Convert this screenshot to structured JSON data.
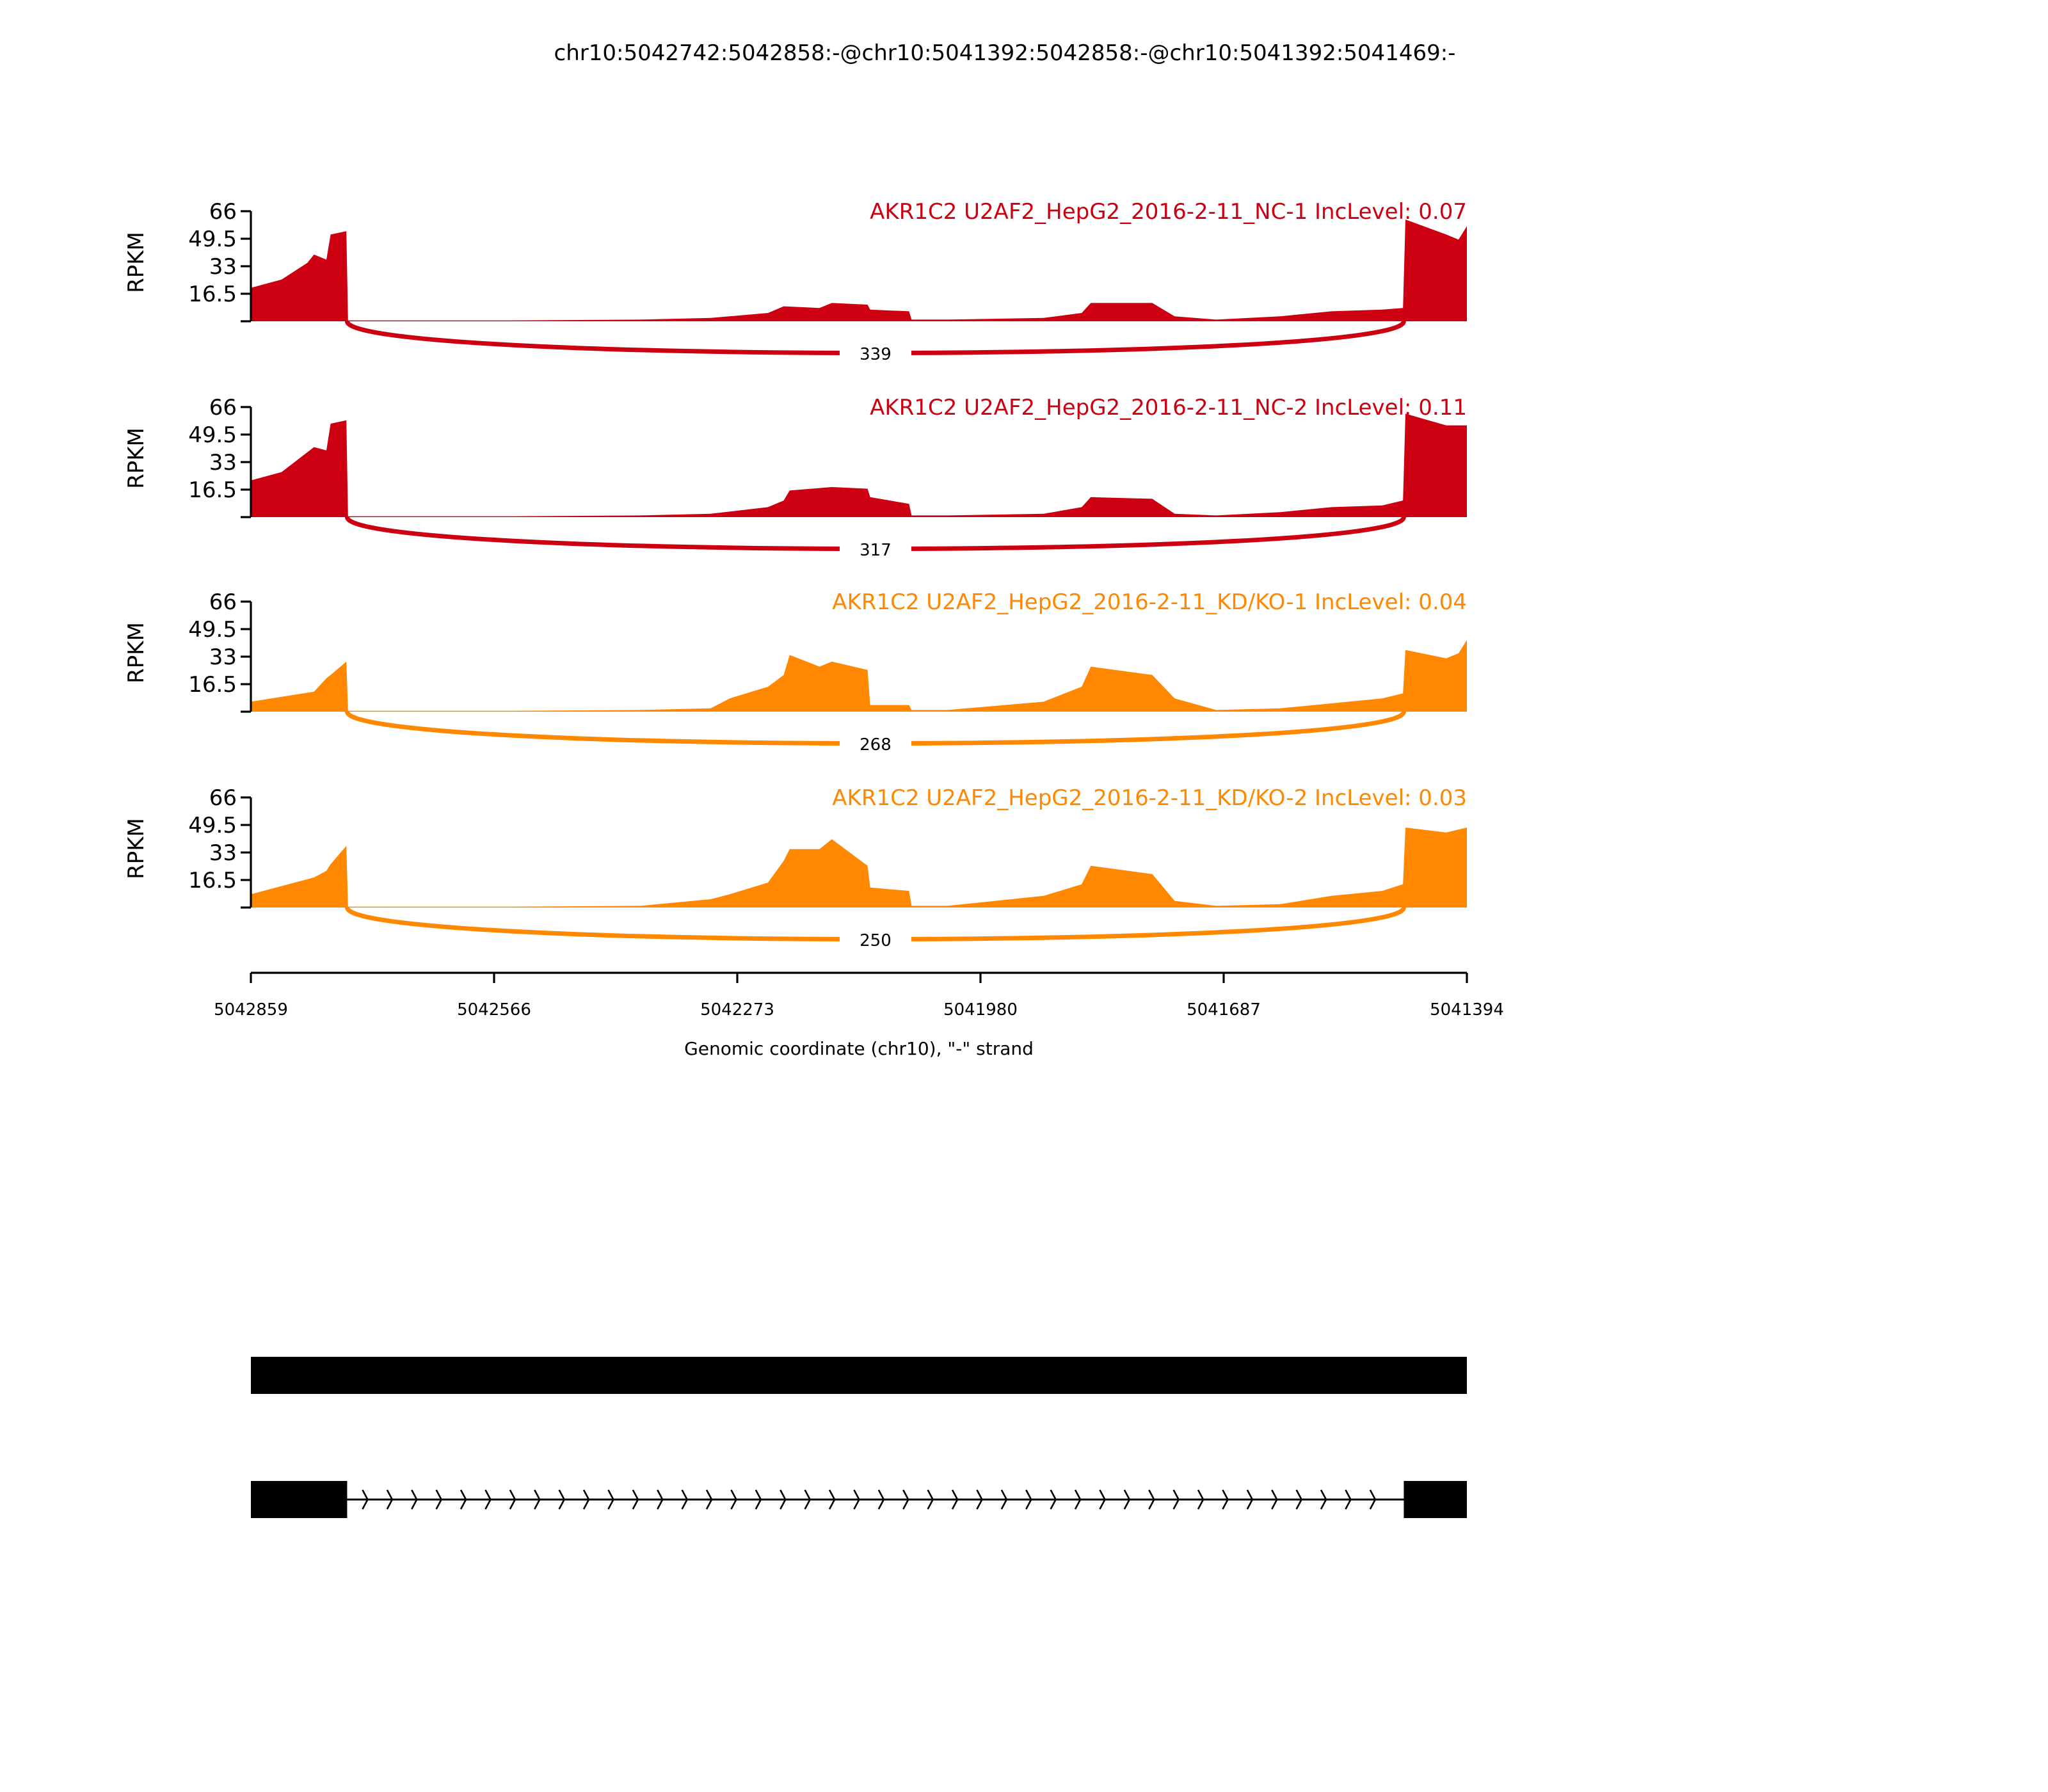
{
  "chart_data": {
    "type": "area",
    "title": "chr10:5042742:5042858:-@chr10:5041392:5042858:-@chr10:5041392:5041469:-",
    "xlabel": "Genomic coordinate (chr10), \"-\" strand",
    "ylabel": "RPKM",
    "xlim": [
      5042859,
      5041394
    ],
    "x_ticks": [
      "5042859",
      "5042566",
      "5042273",
      "5041980",
      "5041687",
      "5041394"
    ],
    "x_tick_values": [
      5042859,
      5042566,
      5042273,
      5041980,
      5041687,
      5041394
    ],
    "ylim": [
      0,
      66
    ],
    "y_ticks": [
      "16.5",
      "33",
      "49.5",
      "66"
    ],
    "y_tick_values": [
      16.5,
      33,
      49.5,
      66
    ],
    "series": [
      {
        "name": "AKR1C2 U2AF2_HepG2_2016-2-11_NC-1 IncLevel: 0.07",
        "color": "#cc0011",
        "junction": {
          "start": 5042743,
          "end": 5041470,
          "count": "339"
        },
        "coverage": [
          [
            5042859,
            20
          ],
          [
            5042822,
            25
          ],
          [
            5042791,
            35
          ],
          [
            5042783,
            40
          ],
          [
            5042768,
            37
          ],
          [
            5042763,
            52
          ],
          [
            5042744,
            54
          ],
          [
            5042742,
            0.5
          ],
          [
            5042544,
            0.5
          ],
          [
            5042390,
            1
          ],
          [
            5042305,
            2
          ],
          [
            5042236,
            5
          ],
          [
            5042217,
            9
          ],
          [
            5042174,
            8
          ],
          [
            5042159,
            11
          ],
          [
            5042116,
            10
          ],
          [
            5042113,
            7
          ],
          [
            5042066,
            6
          ],
          [
            5042063,
            1
          ],
          [
            5042020,
            1
          ],
          [
            5041904,
            2
          ],
          [
            5041858,
            5
          ],
          [
            5041847,
            11
          ],
          [
            5041773,
            11
          ],
          [
            5041746,
            3
          ],
          [
            5041696,
            1
          ],
          [
            5041619,
            3
          ],
          [
            5041557,
            6
          ],
          [
            5041496,
            7
          ],
          [
            5041471,
            8
          ],
          [
            5041468,
            61
          ],
          [
            5041419,
            52
          ],
          [
            5041404,
            49
          ],
          [
            5041394,
            57
          ]
        ]
      },
      {
        "name": "AKR1C2 U2AF2_HepG2_2016-2-11_NC-2 IncLevel: 0.11",
        "color": "#cc0011",
        "junction": {
          "start": 5042743,
          "end": 5041470,
          "count": "317"
        },
        "coverage": [
          [
            5042859,
            22
          ],
          [
            5042822,
            27
          ],
          [
            5042783,
            42
          ],
          [
            5042768,
            40
          ],
          [
            5042763,
            56
          ],
          [
            5042744,
            58
          ],
          [
            5042742,
            0.5
          ],
          [
            5042544,
            0.5
          ],
          [
            5042390,
            1
          ],
          [
            5042305,
            2
          ],
          [
            5042236,
            6
          ],
          [
            5042217,
            10
          ],
          [
            5042210,
            16
          ],
          [
            5042159,
            18
          ],
          [
            5042116,
            17
          ],
          [
            5042113,
            12
          ],
          [
            5042066,
            8
          ],
          [
            5042063,
            1
          ],
          [
            5042020,
            1
          ],
          [
            5041904,
            2
          ],
          [
            5041858,
            6
          ],
          [
            5041847,
            12
          ],
          [
            5041773,
            11
          ],
          [
            5041746,
            2
          ],
          [
            5041696,
            1
          ],
          [
            5041619,
            3
          ],
          [
            5041557,
            6
          ],
          [
            5041496,
            7
          ],
          [
            5041471,
            10
          ],
          [
            5041468,
            62
          ],
          [
            5041419,
            55
          ],
          [
            5041394,
            55
          ]
        ]
      },
      {
        "name": "AKR1C2 U2AF2_HepG2_2016-2-11_KD/KO-1 IncLevel: 0.04",
        "color": "#ff8800",
        "junction": {
          "start": 5042743,
          "end": 5041470,
          "count": "268"
        },
        "coverage": [
          [
            5042859,
            6
          ],
          [
            5042783,
            12
          ],
          [
            5042768,
            20
          ],
          [
            5042763,
            22
          ],
          [
            5042744,
            30
          ],
          [
            5042742,
            0.5
          ],
          [
            5042544,
            0.5
          ],
          [
            5042390,
            1
          ],
          [
            5042305,
            2
          ],
          [
            5042282,
            8
          ],
          [
            5042236,
            15
          ],
          [
            5042217,
            22
          ],
          [
            5042210,
            34
          ],
          [
            5042174,
            27
          ],
          [
            5042159,
            30
          ],
          [
            5042116,
            25
          ],
          [
            5042113,
            4
          ],
          [
            5042066,
            4
          ],
          [
            5042063,
            1
          ],
          [
            5042020,
            1
          ],
          [
            5041904,
            6
          ],
          [
            5041858,
            15
          ],
          [
            5041847,
            27
          ],
          [
            5041773,
            22
          ],
          [
            5041746,
            8
          ],
          [
            5041696,
            1
          ],
          [
            5041619,
            2
          ],
          [
            5041557,
            5
          ],
          [
            5041496,
            8
          ],
          [
            5041471,
            11
          ],
          [
            5041468,
            37
          ],
          [
            5041419,
            32
          ],
          [
            5041404,
            35
          ],
          [
            5041394,
            43
          ]
        ]
      },
      {
        "name": "AKR1C2 U2AF2_HepG2_2016-2-11_KD/KO-2 IncLevel: 0.03",
        "color": "#ff8800",
        "junction": {
          "start": 5042743,
          "end": 5041470,
          "count": "250"
        },
        "coverage": [
          [
            5042859,
            8
          ],
          [
            5042783,
            18
          ],
          [
            5042768,
            22
          ],
          [
            5042763,
            26
          ],
          [
            5042744,
            37
          ],
          [
            5042742,
            0.5
          ],
          [
            5042544,
            0.5
          ],
          [
            5042390,
            1
          ],
          [
            5042305,
            5
          ],
          [
            5042282,
            8
          ],
          [
            5042236,
            15
          ],
          [
            5042217,
            28
          ],
          [
            5042210,
            35
          ],
          [
            5042174,
            35
          ],
          [
            5042159,
            41
          ],
          [
            5042116,
            25
          ],
          [
            5042113,
            12
          ],
          [
            5042066,
            10
          ],
          [
            5042063,
            1
          ],
          [
            5042020,
            1
          ],
          [
            5041904,
            7
          ],
          [
            5041858,
            14
          ],
          [
            5041847,
            25
          ],
          [
            5041773,
            20
          ],
          [
            5041746,
            4
          ],
          [
            5041696,
            1
          ],
          [
            5041619,
            2
          ],
          [
            5041557,
            7
          ],
          [
            5041496,
            10
          ],
          [
            5041471,
            14
          ],
          [
            5041468,
            48
          ],
          [
            5041419,
            45
          ],
          [
            5041394,
            48
          ]
        ]
      }
    ],
    "gene_models": [
      {
        "exons": [
          [
            5042859,
            5041394
          ]
        ],
        "strand": "-"
      },
      {
        "exons": [
          [
            5042859,
            5042743
          ],
          [
            5041470,
            5041394
          ]
        ],
        "strand": "-"
      }
    ]
  }
}
